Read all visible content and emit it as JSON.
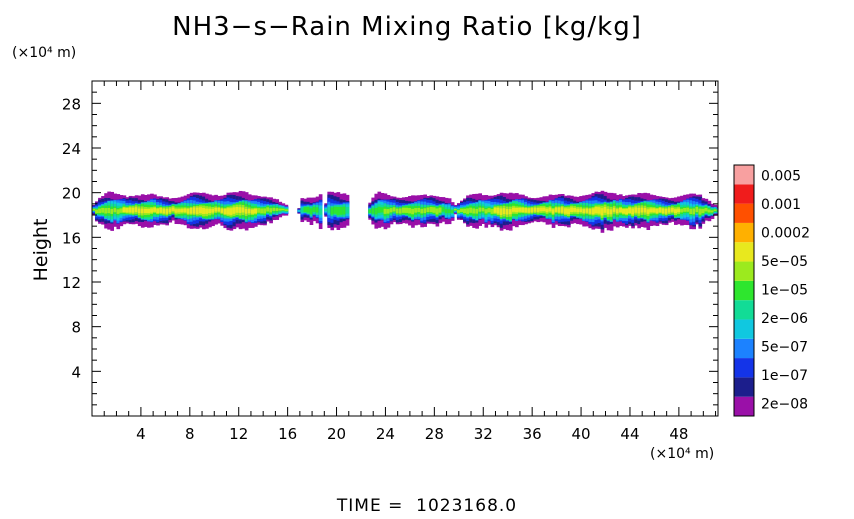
{
  "chart_data": {
    "type": "heatmap",
    "title": "NH3−s−Rain Mixing Ratio [kg/kg]",
    "ylabel": "Height",
    "y_unit": "(×10⁴ m)",
    "x_unit": "(×10⁴ m)",
    "x_ticks": [
      "4",
      "8",
      "12",
      "16",
      "20",
      "24",
      "28",
      "32",
      "36",
      "40",
      "44",
      "48"
    ],
    "y_ticks": [
      "4",
      "8",
      "12",
      "16",
      "20",
      "24",
      "28"
    ],
    "xlim": [
      0,
      51.2
    ],
    "ylim": [
      0,
      30
    ],
    "legend": {
      "labels": [
        "0.005",
        "0.001",
        "0.0002",
        "5e−05",
        "1e−05",
        "2e−06",
        "5e−07",
        "1e−07",
        "2e−08"
      ],
      "colors": [
        "#9a10a8",
        "#1c1e8c",
        "#1434e8",
        "#1c82ff",
        "#10c8e0",
        "#12dc96",
        "#2ee62e",
        "#9cea1e",
        "#e8e81e",
        "#ffb000",
        "#ff5000",
        "#f01c1c",
        "#f8a0a0"
      ]
    },
    "cloud_band": {
      "y_bottom": 16.2,
      "y_top": 20.0,
      "core_y_bottom": 17.0,
      "core_y_top": 19.2,
      "segments": [
        {
          "x0": 0.0,
          "x1": 15.8,
          "peak": 8
        },
        {
          "x0": 16.8,
          "x1": 18.8,
          "peak": 6
        },
        {
          "x0": 19.0,
          "x1": 21.0,
          "peak": 6
        },
        {
          "x0": 22.6,
          "x1": 29.6,
          "peak": 7
        },
        {
          "x0": 29.6,
          "x1": 51.2,
          "peak": 8
        }
      ]
    },
    "time_label": "TIME",
    "time_value": "1023168.0"
  }
}
